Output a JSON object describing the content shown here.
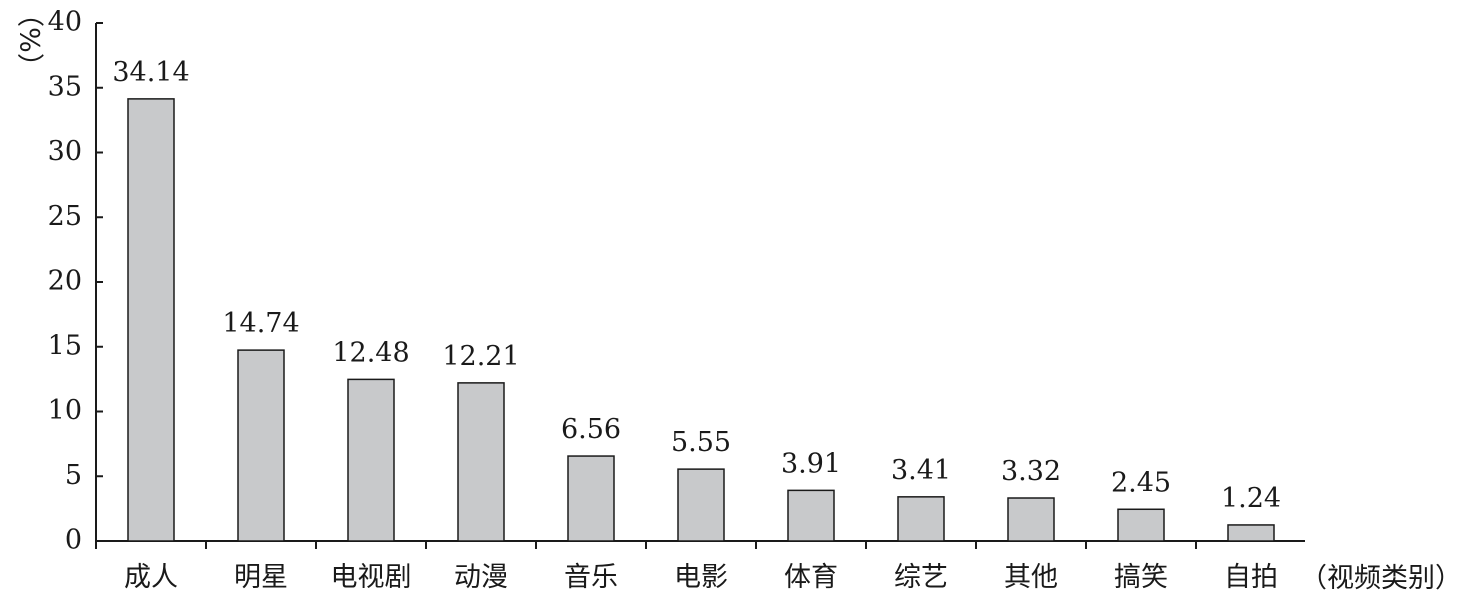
{
  "chart_data": {
    "type": "bar",
    "categories": [
      "成人",
      "明星",
      "电视剧",
      "动漫",
      "音乐",
      "电影",
      "体育",
      "综艺",
      "其他",
      "搞笑",
      "自拍"
    ],
    "values": [
      34.14,
      14.74,
      12.48,
      12.21,
      6.56,
      5.55,
      3.91,
      3.41,
      3.32,
      2.45,
      1.24
    ],
    "data_labels": [
      "34.14",
      "14.74",
      "12.48",
      "12.21",
      "6.56",
      "5.55",
      "3.91",
      "3.41",
      "3.32",
      "2.45",
      "1.24"
    ],
    "title": "",
    "ylabel": "（%）",
    "xlabel": "（视频类别）",
    "ylim": [
      0,
      40
    ],
    "yticks": [
      0,
      5,
      10,
      15,
      20,
      25,
      30,
      35,
      40
    ],
    "grid": false,
    "legend": "none",
    "colors": {
      "bar_fill": "#c8c9cb",
      "bar_stroke": "#1a1a1a",
      "axis": "#1a1a1a"
    }
  }
}
